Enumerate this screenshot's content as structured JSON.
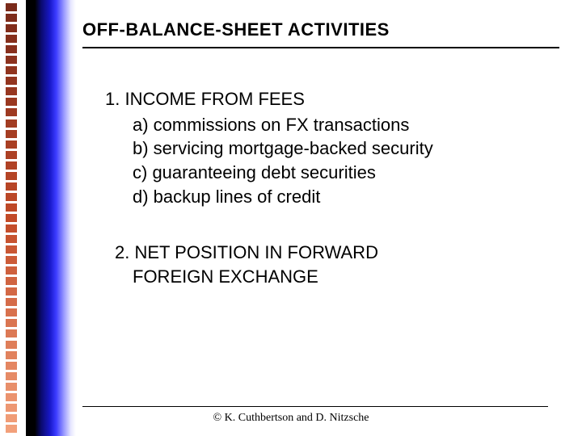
{
  "slide": {
    "title": "OFF-BALANCE-SHEET ACTIVITIES",
    "section1": {
      "heading": "1.  INCOME FROM FEES",
      "items": {
        "a": "a) commissions on FX transactions",
        "b": "b) servicing mortgage-backed security",
        "c": "c) guaranteeing debt securities",
        "d": "d) backup lines of credit"
      }
    },
    "section2": {
      "line1": "2.  NET POSITION IN FORWARD",
      "line2": "FOREIGN EXCHANGE"
    },
    "footer": "© K. Cuthbertson and D. Nitzsche"
  },
  "style": {
    "border_squares": {
      "count": 41,
      "color_top": "#7a2a1a",
      "color_mid": "#c24a28",
      "color_bottom": "#f2a07a",
      "square_w": 14,
      "square_h": 10
    },
    "gradient": {
      "stops": [
        "#000000",
        "#0a0a6a",
        "#1818c8",
        "#3a3aff",
        "#9a9aff",
        "#ffffff"
      ]
    },
    "title_fontsize": 22,
    "body_fontsize": 22,
    "footer_fontsize": 14,
    "background": "#ffffff",
    "text_color": "#000000",
    "rule_color": "#000000"
  }
}
